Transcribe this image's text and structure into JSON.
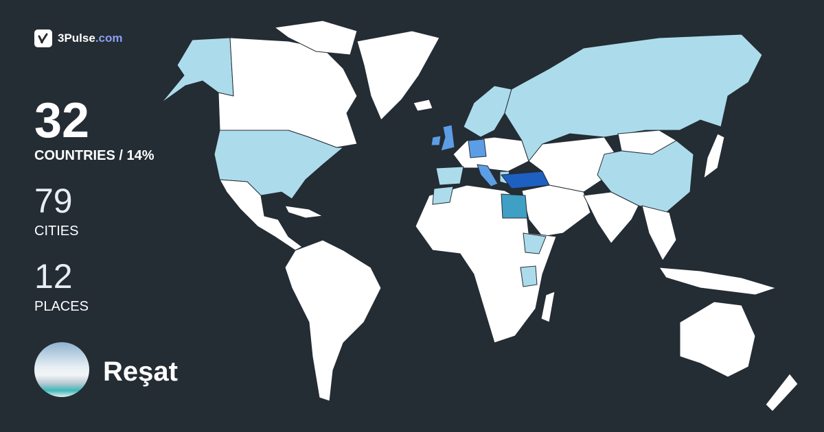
{
  "brand": {
    "name": "3Pulse",
    "domain": ".com",
    "icon": "check-pulse-icon"
  },
  "stats": {
    "countries": {
      "value": "32",
      "label": "COUNTRIES / 14%"
    },
    "cities": {
      "value": "79",
      "label": "CITIES"
    },
    "places": {
      "value": "12",
      "label": "PLACES"
    }
  },
  "user": {
    "name": "Reşat",
    "avatar": "frozen-lake-photo"
  },
  "colors": {
    "background": "#242c34",
    "unvisited": "#ffffff",
    "visited_light": "#acdcec",
    "visited_medium": "#5b9ee6",
    "visited_dark": "#1e5fc2"
  }
}
